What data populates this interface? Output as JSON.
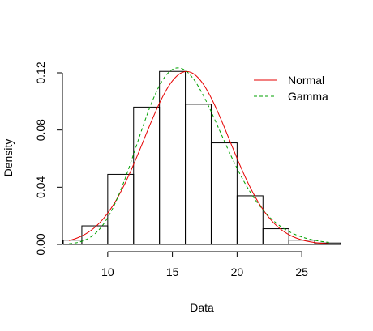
{
  "chart_data": {
    "type": "histogram-with-density",
    "xlabel": "Data",
    "ylabel": "Density",
    "xlim": [
      6.5,
      28
    ],
    "ylim": [
      0,
      0.12
    ],
    "x_ticks": [
      10,
      15,
      20,
      25
    ],
    "y_ticks": [
      0.0,
      0.04,
      0.08,
      0.12
    ],
    "y_tick_labels": [
      "0.00",
      "0.04",
      "0.08",
      "0.12"
    ],
    "grid": false,
    "legend_position": "top-right",
    "histogram": {
      "bin_edges": [
        6,
        8,
        10,
        12,
        14,
        16,
        18,
        20,
        22,
        24,
        26,
        28
      ],
      "density": [
        0.003,
        0.013,
        0.049,
        0.096,
        0.121,
        0.098,
        0.071,
        0.034,
        0.011,
        0.003,
        0.001
      ]
    },
    "series": [
      {
        "name": "Normal",
        "color": "#e60000",
        "line_style": "solid",
        "distribution": "normal",
        "params": {
          "mean": 16.1,
          "sd": 3.3
        }
      },
      {
        "name": "Gamma",
        "color": "#00a000",
        "line_style": "dashed",
        "distribution": "gamma",
        "params": {
          "shape": 24,
          "rate": 1.49
        }
      }
    ]
  }
}
